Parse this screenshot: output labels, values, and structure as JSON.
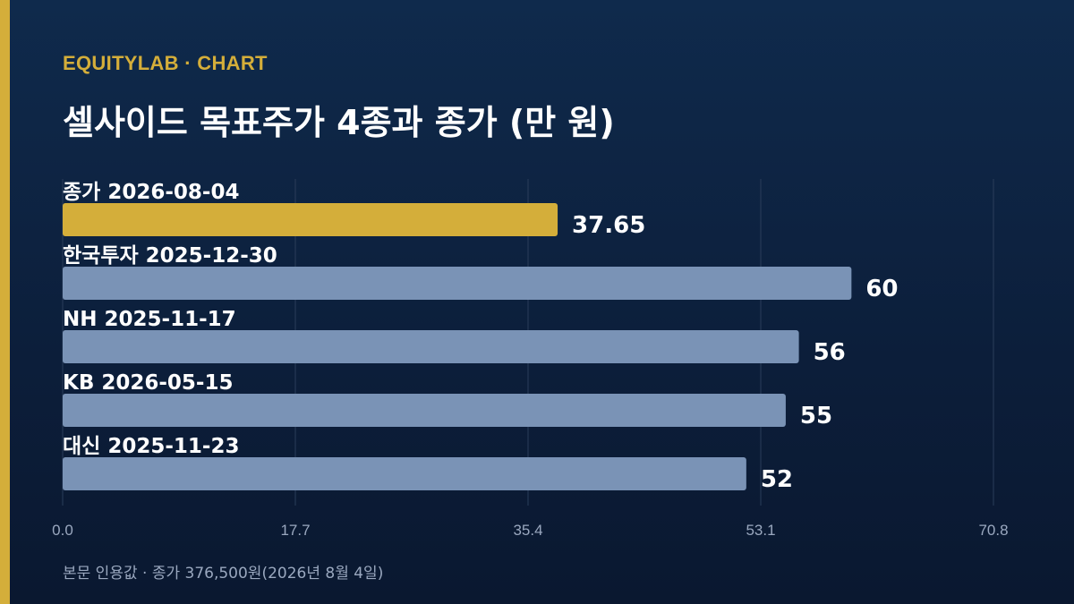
{
  "header": {
    "kicker": "EQUITYLAB · CHART",
    "title": "셀사이드 목표주가 4종과 종가 (만 원)"
  },
  "footnote": "본문 인용값 · 종가 376,500원(2026년 8월 4일)",
  "colors": {
    "background": "#0c1e3a",
    "accent": "#d4ae3a",
    "bar": "#7a93b6",
    "gridline": "#2a3d5a",
    "text": "#ffffff",
    "muted": "#9aa8bf"
  },
  "chart_data": {
    "type": "bar",
    "orientation": "horizontal",
    "categories": [
      "종가 2026-08-04",
      "한국투자 2025-12-30",
      "NH 2025-11-17",
      "KB 2026-05-15",
      "대신 2025-11-23"
    ],
    "values": [
      37.65,
      60,
      56,
      55,
      52
    ],
    "value_labels": [
      "37.65",
      "60",
      "56",
      "55",
      "52"
    ],
    "highlight_index": 0,
    "xlim": [
      0,
      70.8
    ],
    "xticks": [
      0.0,
      17.7,
      35.4,
      53.1,
      70.8
    ],
    "xtick_labels": [
      "0.0",
      "17.7",
      "35.4",
      "53.1",
      "70.8"
    ],
    "grid": true
  }
}
